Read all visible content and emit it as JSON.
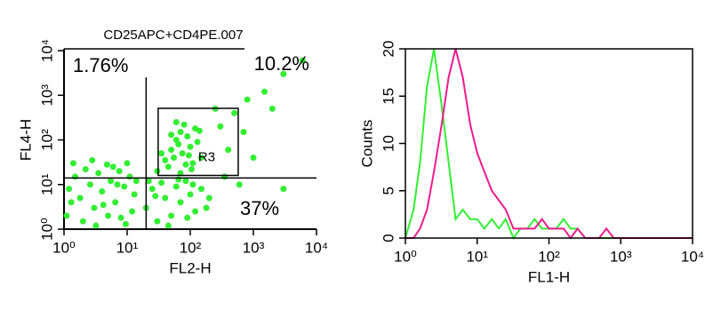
{
  "chart_data": [
    {
      "type": "scatter",
      "title": "CD25APC+CD4PE.007",
      "x_label": "FL2-H",
      "y_label": "FL4-H",
      "log_x": true,
      "log_y": true,
      "color": "#33ee33",
      "xlim": [
        1,
        10000
      ],
      "ylim": [
        1,
        10000
      ],
      "xticks": [
        {
          "value": 1,
          "label": "10⁰"
        },
        {
          "value": 10,
          "label": "10¹"
        },
        {
          "value": 100,
          "label": "10²"
        },
        {
          "value": 1000,
          "label": "10³"
        },
        {
          "value": 10000,
          "label": "10⁴"
        }
      ],
      "yticks": [
        {
          "value": 1,
          "label": "10⁰"
        },
        {
          "value": 10,
          "label": "10¹"
        },
        {
          "value": 100,
          "label": "10²"
        },
        {
          "value": 1000,
          "label": "10³"
        },
        {
          "value": 10000,
          "label": "10⁴"
        }
      ],
      "quadrant": {
        "x": 20,
        "y": 14
      },
      "quadrant_labels": [
        "1.76%",
        "10.2%",
        "37%"
      ],
      "gate": {
        "label": "R3",
        "x": [
          31,
          575
        ],
        "y": [
          16,
          510
        ]
      },
      "x": [
        1.2,
        1.5,
        1.8,
        2.2,
        2.6,
        3,
        3.5,
        4,
        4.8,
        5.5,
        6.5,
        7.5,
        9,
        11,
        13,
        1.1,
        2,
        3.2,
        5,
        8,
        12,
        1.4,
        2.8,
        6,
        10,
        1.3,
        4.2,
        7,
        9.5,
        14,
        20,
        25,
        30,
        35,
        40,
        50,
        60,
        70,
        85,
        100,
        120,
        150,
        180,
        22,
        45,
        90,
        200,
        28,
        65,
        110,
        30,
        40,
        50,
        60,
        70,
        80,
        55,
        65,
        75,
        90,
        100,
        110,
        120,
        45,
        85,
        95,
        130,
        150,
        35,
        60,
        70,
        105,
        140,
        50,
        300,
        500,
        800,
        1500,
        3000,
        6000,
        400,
        700,
        250,
        2000,
        1000,
        350,
        600,
        3000
      ],
      "y": [
        8,
        15,
        5,
        22,
        10,
        3,
        18,
        7,
        28,
        12,
        4,
        20,
        9,
        15,
        6,
        2,
        1.5,
        1.2,
        2,
        1.8,
        2.5,
        30,
        35,
        25,
        30,
        4,
        3.5,
        10,
        1.3,
        12,
        3,
        8,
        1.5,
        11,
        5,
        2,
        9,
        4,
        12,
        6,
        2.5,
        8,
        3,
        12,
        1.2,
        1.8,
        5,
        5.5,
        13,
        10,
        20,
        35,
        60,
        100,
        150,
        220,
        40,
        80,
        50,
        120,
        70,
        30,
        180,
        25,
        28,
        45,
        90,
        40,
        50,
        250,
        18,
        22,
        160,
        130,
        200,
        400,
        800,
        1200,
        3000,
        6000,
        60,
        150,
        500,
        500,
        40,
        15,
        10,
        8
      ]
    },
    {
      "type": "line",
      "x_label": "FL1-H",
      "y_label": "Counts",
      "log_x": true,
      "xlim": [
        1,
        10000
      ],
      "ylim": [
        0,
        20
      ],
      "xticks": [
        {
          "value": 1,
          "label": "10⁰"
        },
        {
          "value": 10,
          "label": "10¹"
        },
        {
          "value": 100,
          "label": "10²"
        },
        {
          "value": 1000,
          "label": "10³"
        },
        {
          "value": 10000,
          "label": "10⁴"
        }
      ],
      "yticks": [
        0,
        5,
        10,
        15,
        20
      ],
      "x": [
        1,
        1.3,
        1.6,
        2,
        2.5,
        3.2,
        4,
        5,
        6.3,
        8,
        10,
        12.6,
        16,
        20,
        25,
        32,
        40,
        50,
        63,
        80,
        100,
        126,
        160,
        200,
        250,
        320,
        400,
        500,
        630,
        800,
        1000,
        2000,
        5000,
        10000
      ],
      "series": [
        {
          "color": "#33ee33",
          "values": [
            0,
            3,
            8,
            16,
            20,
            14,
            8,
            2,
            3,
            2,
            2,
            1,
            2,
            1,
            2,
            0,
            1,
            1,
            2,
            1,
            1,
            1,
            2,
            1,
            1,
            0,
            0,
            0,
            0,
            0,
            0,
            0,
            0,
            0
          ]
        },
        {
          "color": "#ee1a8c",
          "values": [
            0,
            0,
            1,
            3,
            7,
            12,
            17,
            20,
            17,
            12,
            9,
            7,
            5,
            4,
            3,
            1,
            1,
            1,
            1,
            2,
            1,
            1,
            1,
            0,
            1,
            0,
            0,
            0,
            1,
            0,
            0,
            0,
            0,
            0
          ]
        }
      ]
    }
  ]
}
